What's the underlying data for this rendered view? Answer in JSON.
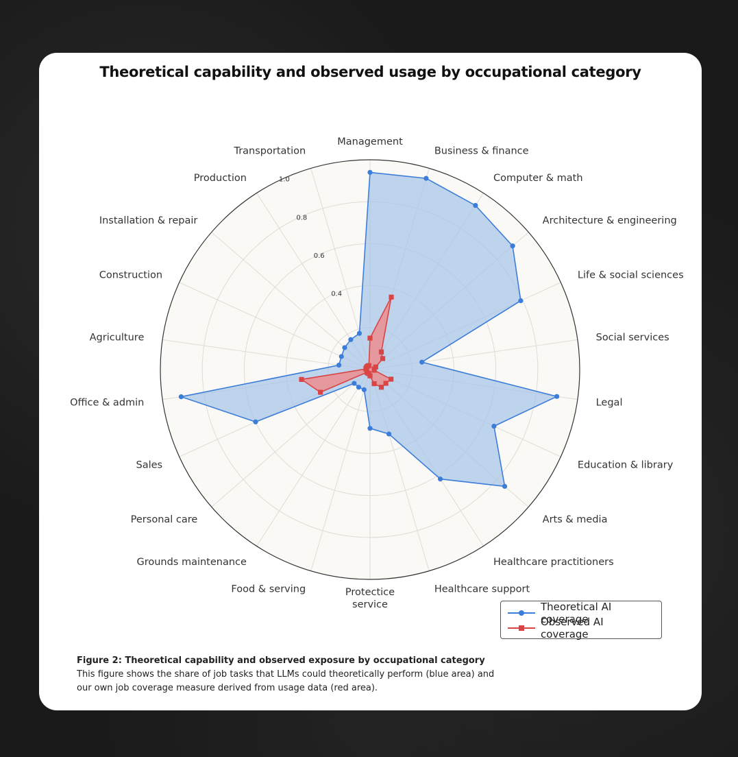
{
  "title": "Theoretical capability and observed usage by occupational category",
  "legend": {
    "theoretical": "Theoretical AI coverage",
    "observed": "Observed AI coverage"
  },
  "caption": {
    "title": "Figure 2: Theoretical capability and observed exposure by occupational category",
    "body": "This figure shows the share of job tasks that LLMs could theoretically perform (blue area) and our own job coverage measure derived from usage data (red area)."
  },
  "colors": {
    "theoretical_line": "#3b7dd8",
    "theoretical_fill": "#a9c6e8",
    "observed_line": "#d94444",
    "observed_fill": "#ef8a8a",
    "plot_bg": "#faf9f5"
  },
  "chart_data": {
    "type": "radar",
    "title": "Theoretical capability and observed usage by occupational category",
    "categories": [
      "Management",
      "Business & finance",
      "Computer & math",
      "Architecture & engineering",
      "Life & social sciences",
      "Social services",
      "Legal",
      "Education & library",
      "Arts & media",
      "Healthcare practitioners",
      "Healthcare support",
      "Protectice\nservice",
      "Food & serving",
      "Grounds maintenance",
      "Personal care",
      "Sales",
      "Office & admin",
      "Agriculture",
      "Construction",
      "Installation & repair",
      "Production",
      "Transportation"
    ],
    "rlim": [
      0,
      1.0
    ],
    "rticks": [
      0.4,
      0.6,
      0.8,
      1.0
    ],
    "series": [
      {
        "name": "Theoretical AI coverage",
        "marker": "circle",
        "values": [
          0.94,
          0.95,
          0.93,
          0.9,
          0.79,
          0.25,
          0.9,
          0.65,
          0.85,
          0.62,
          0.32,
          0.28,
          0.1,
          0.1,
          0.1,
          0.6,
          0.91,
          0.15,
          0.15,
          0.16,
          0.17,
          0.18
        ]
      },
      {
        "name": "Observed AI coverage",
        "marker": "square",
        "values": [
          0.15,
          0.36,
          0.1,
          0.08,
          0.03,
          0.02,
          0.02,
          0.11,
          0.1,
          0.1,
          0.07,
          0.03,
          0.02,
          0.02,
          0.02,
          0.26,
          0.33,
          0.02,
          0.02,
          0.02,
          0.02,
          0.02
        ]
      }
    ],
    "grid": true,
    "legend_position": "bottom-right"
  }
}
